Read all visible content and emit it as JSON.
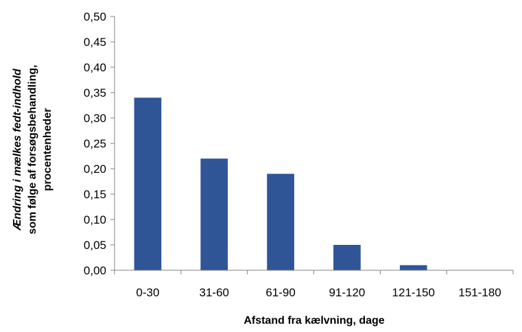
{
  "chart_data": {
    "type": "bar",
    "categories": [
      "0-30",
      "31-60",
      "61-90",
      "91-120",
      "121-150",
      "151-180"
    ],
    "values": [
      0.34,
      0.22,
      0.19,
      0.05,
      0.01,
      0.0
    ],
    "title": "",
    "xlabel": "Afstand fra kælvning, dage",
    "ylabel_lines": [
      "Ændring i mælkes fedt-indhold",
      "som følge af forsøgsbehandling,",
      "procentenheder"
    ],
    "ylim": [
      0,
      0.5
    ],
    "yticks": [
      "0,00",
      "0,05",
      "0,10",
      "0,15",
      "0,20",
      "0,25",
      "0,30",
      "0,35",
      "0,40",
      "0,45",
      "0,50"
    ],
    "grid": false,
    "legend": "none",
    "colors": {
      "bar": "#2f5597",
      "axis": "#808080",
      "text": "#000000"
    }
  }
}
